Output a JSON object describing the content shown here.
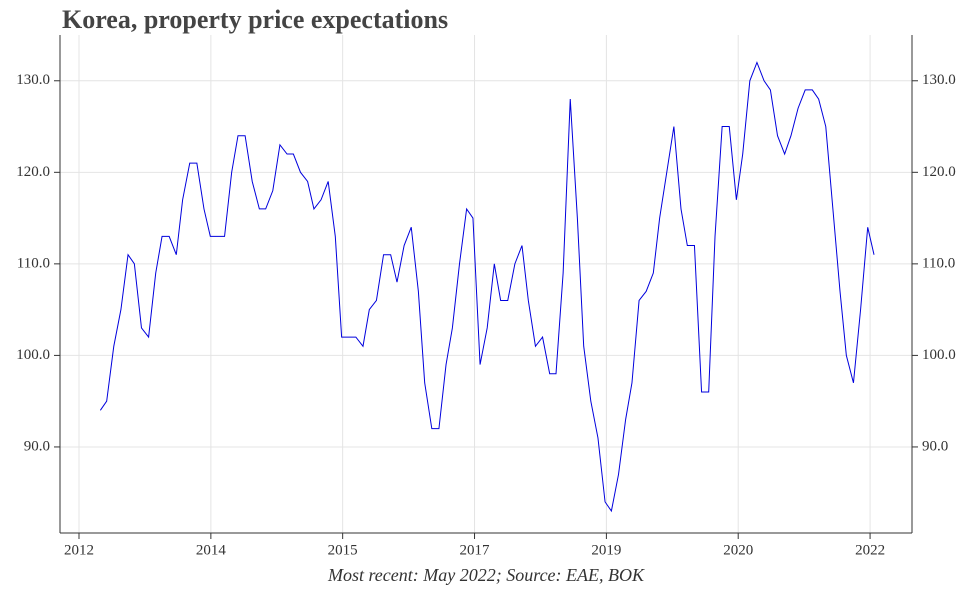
{
  "chart_data": {
    "type": "line",
    "title": "Korea, property price expectations",
    "note": "Most recent: May 2022; Source: EAE, BOK",
    "x": [
      2012.27,
      2012.35,
      2012.44,
      2012.53,
      2012.62,
      2012.7,
      2012.79,
      2012.88,
      2012.97,
      2013.05,
      2013.14,
      2013.23,
      2013.31,
      2013.4,
      2013.49,
      2013.58,
      2013.66,
      2013.75,
      2013.84,
      2013.93,
      2014.01,
      2014.1,
      2014.19,
      2014.28,
      2014.36,
      2014.45,
      2014.54,
      2014.63,
      2014.71,
      2014.8,
      2014.89,
      2014.97,
      2015.06,
      2015.15,
      2015.24,
      2015.32,
      2015.41,
      2015.5,
      2015.59,
      2015.67,
      2015.76,
      2015.85,
      2015.94,
      2016.02,
      2016.11,
      2016.2,
      2016.29,
      2016.37,
      2016.46,
      2016.55,
      2016.64,
      2016.72,
      2016.81,
      2016.9,
      2016.98,
      2017.07,
      2017.16,
      2017.25,
      2017.33,
      2017.42,
      2017.51,
      2017.6,
      2017.68,
      2017.77,
      2017.86,
      2017.95,
      2018.03,
      2018.12,
      2018.21,
      2018.3,
      2018.38,
      2018.47,
      2018.56,
      2018.65,
      2018.73,
      2018.82,
      2018.91,
      2018.99,
      2019.08,
      2019.17,
      2019.26,
      2019.34,
      2019.43,
      2019.52,
      2019.61,
      2019.69,
      2019.78,
      2019.87,
      2019.96,
      2020.04,
      2020.13,
      2020.22,
      2020.31,
      2020.39,
      2020.48,
      2020.57,
      2020.66,
      2020.74,
      2020.83,
      2020.92,
      2021.0,
      2021.09,
      2021.18,
      2021.27,
      2021.35,
      2021.44,
      2021.53,
      2021.62,
      2021.7,
      2021.79,
      2021.88,
      2021.97,
      2022.05
    ],
    "series": [
      {
        "color": "#0000dd",
        "values": [
          94,
          95,
          101,
          105,
          111,
          110,
          103,
          102,
          109,
          113,
          113,
          111,
          117,
          121,
          121,
          116,
          113,
          113,
          113,
          120,
          124,
          124,
          119,
          116,
          116,
          118,
          123,
          122,
          122,
          120,
          119,
          116,
          117,
          119,
          113,
          102,
          102,
          102,
          101,
          105,
          106,
          111,
          111,
          108,
          112,
          114,
          107,
          97,
          92,
          92,
          99,
          103,
          110,
          116,
          115,
          99,
          103,
          110,
          106,
          106,
          110,
          112,
          106,
          101,
          102,
          98,
          98,
          109,
          128,
          115,
          101,
          95,
          91,
          84,
          83,
          87,
          93,
          97,
          106,
          107,
          109,
          115,
          120,
          125,
          116,
          112,
          112,
          96,
          96,
          113,
          125,
          125,
          117,
          122,
          130,
          132,
          130,
          129,
          124,
          122,
          124,
          127,
          129,
          129,
          128,
          125,
          116,
          107,
          100,
          97,
          105,
          114,
          111
        ]
      }
    ],
    "xlim": [
      2011.76,
      2022.53
    ],
    "xticks": [
      {
        "value": 2012,
        "label": "2012"
      },
      {
        "value": 2013.667,
        "label": "2014"
      },
      {
        "value": 2015.333,
        "label": "2015"
      },
      {
        "value": 2017,
        "label": "2017"
      },
      {
        "value": 2018.667,
        "label": "2019"
      },
      {
        "value": 2020.333,
        "label": "2020"
      },
      {
        "value": 2022,
        "label": "2022"
      }
    ],
    "ylim": [
      80.6,
      135
    ],
    "yticks": [
      {
        "value": 90,
        "label": "90.0"
      },
      {
        "value": 100,
        "label": "100.0"
      },
      {
        "value": 110,
        "label": "110.0"
      },
      {
        "value": 120,
        "label": "120.0"
      },
      {
        "value": 130,
        "label": "130.0"
      }
    ],
    "grid": true
  }
}
